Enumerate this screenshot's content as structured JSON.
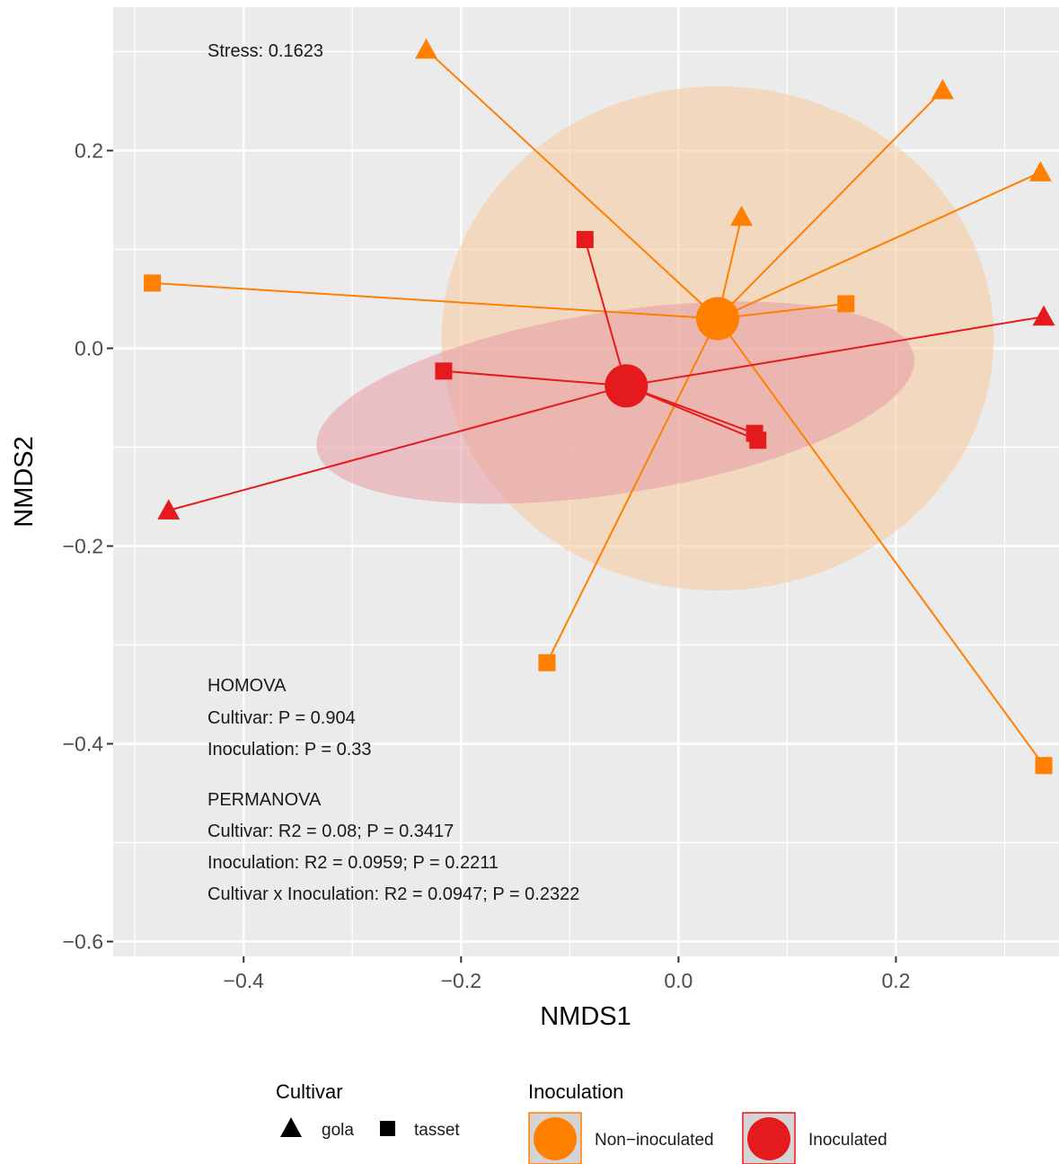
{
  "chart_data": {
    "type": "scatter",
    "xlabel": "NMDS1",
    "ylabel": "NMDS2",
    "xlim": [
      -0.52,
      0.35
    ],
    "ylim": [
      -0.615,
      0.345
    ],
    "x_ticks": [
      -0.4,
      -0.2,
      0.0,
      0.2
    ],
    "y_ticks": [
      -0.6,
      -0.4,
      -0.2,
      0.0,
      0.2
    ],
    "x_tick_labels": [
      "−0.4",
      "−0.2",
      "0.0",
      "0.2"
    ],
    "y_tick_labels": [
      "−0.6",
      "−0.4",
      "−0.2",
      "0.0",
      "0.2"
    ],
    "grid": true,
    "annotations": {
      "stress": "Stress: 0.1623",
      "homova": [
        "HOMOVA",
        "Cultivar: P = 0.904",
        "Inoculation: P = 0.33"
      ],
      "permanova": [
        "PERMANOVA",
        "Cultivar: R2 = 0.08; P = 0.3417",
        "Inoculation: R2 = 0.0959; P = 0.2211",
        "Cultivar x Inoculation: R2 = 0.0947; P = 0.2322"
      ]
    },
    "groups": [
      {
        "name": "Non−inoculated",
        "color": "#FF8000",
        "fill": "#F7C89A",
        "centroid": [
          0.036,
          0.03
        ],
        "ellipse": {
          "center": [
            0.036,
            0.01
          ],
          "rx": 0.254,
          "ry": 0.255,
          "angle": 0
        },
        "points": [
          {
            "x": -0.232,
            "y": 0.302,
            "cultivar": "gola"
          },
          {
            "x": 0.243,
            "y": 0.261,
            "cultivar": "gola"
          },
          {
            "x": 0.333,
            "y": 0.178,
            "cultivar": "gola"
          },
          {
            "x": 0.058,
            "y": 0.133,
            "cultivar": "gola"
          },
          {
            "x": -0.484,
            "y": 0.066,
            "cultivar": "tasset"
          },
          {
            "x": 0.154,
            "y": 0.045,
            "cultivar": "tasset"
          },
          {
            "x": -0.121,
            "y": -0.318,
            "cultivar": "tasset"
          },
          {
            "x": 0.336,
            "y": -0.422,
            "cultivar": "tasset"
          }
        ]
      },
      {
        "name": "Inoculated",
        "color": "#E41A1C",
        "fill": "#E89AA4",
        "centroid": [
          -0.048,
          -0.038
        ],
        "ellipse": {
          "center": [
            -0.058,
            -0.055
          ],
          "rx": 0.278,
          "ry": 0.092,
          "angle": -8.8
        },
        "points": [
          {
            "x": -0.086,
            "y": 0.11,
            "cultivar": "tasset"
          },
          {
            "x": -0.216,
            "y": -0.023,
            "cultivar": "tasset"
          },
          {
            "x": 0.07,
            "y": -0.086,
            "cultivar": "tasset"
          },
          {
            "x": 0.073,
            "y": -0.093,
            "cultivar": "tasset"
          },
          {
            "x": 0.336,
            "y": 0.032,
            "cultivar": "gola"
          },
          {
            "x": -0.469,
            "y": -0.164,
            "cultivar": "gola"
          }
        ]
      }
    ],
    "legend": {
      "position": "bottom",
      "cultivar_title": "Cultivar",
      "cultivar_items": [
        {
          "label": "gola",
          "shape": "triangle"
        },
        {
          "label": "tasset",
          "shape": "square"
        }
      ],
      "inoculation_title": "Inoculation",
      "inoculation_items": [
        {
          "label": "Non−inoculated",
          "color": "#FF8000"
        },
        {
          "label": "Inoculated",
          "color": "#E41A1C"
        }
      ]
    }
  }
}
